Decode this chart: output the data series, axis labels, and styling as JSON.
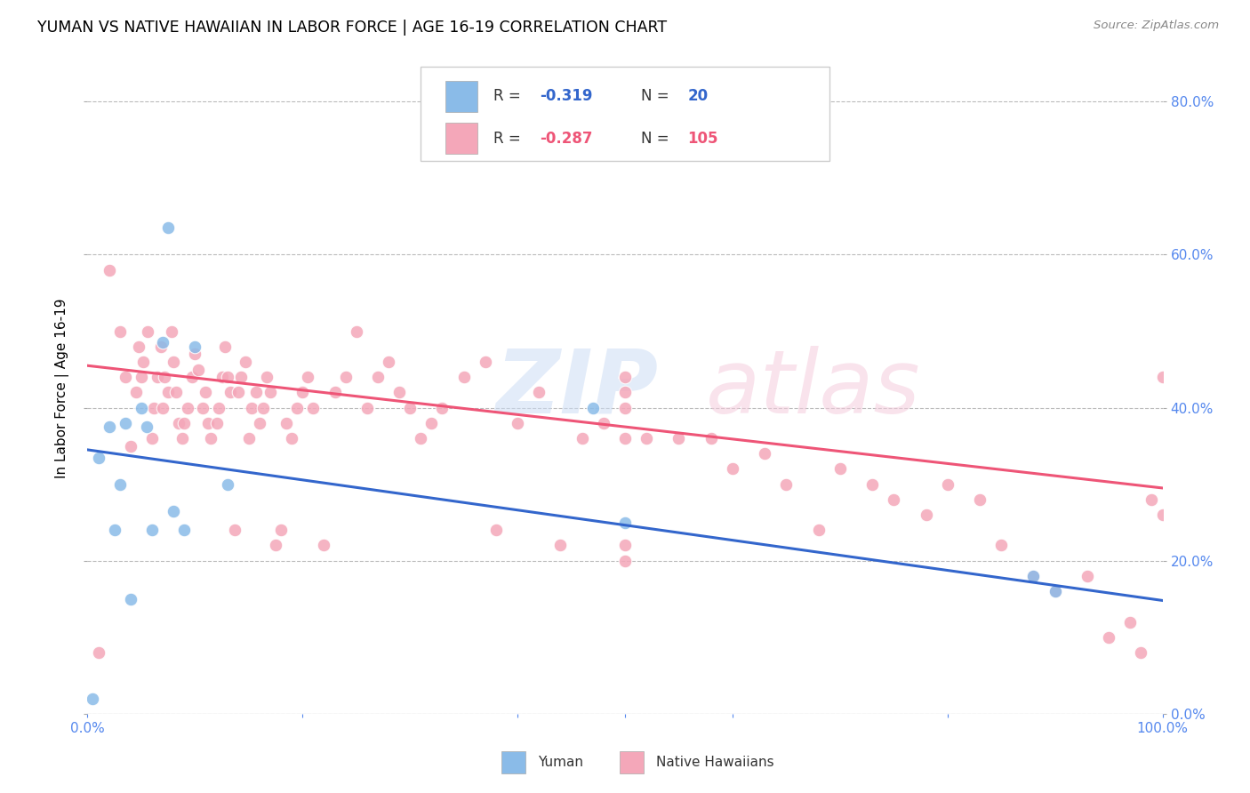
{
  "title": "YUMAN VS NATIVE HAWAIIAN IN LABOR FORCE | AGE 16-19 CORRELATION CHART",
  "source_text": "Source: ZipAtlas.com",
  "ylabel": "In Labor Force | Age 16-19",
  "xmin": 0.0,
  "xmax": 1.0,
  "ymin": 0.0,
  "ymax": 0.85,
  "yticks": [
    0.0,
    0.2,
    0.4,
    0.6,
    0.8
  ],
  "yticklabels_right": [
    "0.0%",
    "20.0%",
    "40.0%",
    "60.0%",
    "80.0%"
  ],
  "xtick_left_label": "0.0%",
  "xtick_right_label": "100.0%",
  "legend_r_blue": "-0.319",
  "legend_n_blue": "20",
  "legend_r_pink": "-0.287",
  "legend_n_pink": "105",
  "blue_color": "#8ABBE8",
  "pink_color": "#F4A7B9",
  "line_blue_color": "#3366CC",
  "line_pink_color": "#EE5577",
  "background_color": "#FFFFFF",
  "grid_color": "#BBBBBB",
  "tick_color": "#5588EE",
  "blue_trendline_y_start": 0.345,
  "blue_trendline_y_end": 0.148,
  "pink_trendline_y_start": 0.455,
  "pink_trendline_y_end": 0.295,
  "yuman_x": [
    0.005,
    0.01,
    0.02,
    0.025,
    0.03,
    0.035,
    0.04,
    0.05,
    0.055,
    0.06,
    0.07,
    0.075,
    0.08,
    0.09,
    0.1,
    0.13,
    0.47,
    0.5,
    0.88,
    0.9
  ],
  "yuman_y": [
    0.02,
    0.335,
    0.375,
    0.24,
    0.3,
    0.38,
    0.15,
    0.4,
    0.375,
    0.24,
    0.485,
    0.635,
    0.265,
    0.24,
    0.48,
    0.3,
    0.4,
    0.25,
    0.18,
    0.16
  ],
  "native_x": [
    0.01,
    0.02,
    0.03,
    0.035,
    0.04,
    0.045,
    0.048,
    0.05,
    0.052,
    0.056,
    0.06,
    0.062,
    0.065,
    0.068,
    0.07,
    0.072,
    0.075,
    0.078,
    0.08,
    0.082,
    0.085,
    0.088,
    0.09,
    0.093,
    0.097,
    0.1,
    0.103,
    0.107,
    0.11,
    0.112,
    0.115,
    0.12,
    0.122,
    0.125,
    0.128,
    0.13,
    0.133,
    0.137,
    0.14,
    0.143,
    0.147,
    0.15,
    0.153,
    0.157,
    0.16,
    0.163,
    0.167,
    0.17,
    0.175,
    0.18,
    0.185,
    0.19,
    0.195,
    0.2,
    0.205,
    0.21,
    0.22,
    0.23,
    0.24,
    0.25,
    0.26,
    0.27,
    0.28,
    0.29,
    0.3,
    0.31,
    0.32,
    0.33,
    0.35,
    0.37,
    0.38,
    0.4,
    0.42,
    0.44,
    0.46,
    0.48,
    0.5,
    0.52,
    0.55,
    0.58,
    0.6,
    0.63,
    0.65,
    0.68,
    0.7,
    0.73,
    0.75,
    0.78,
    0.8,
    0.83,
    0.85,
    0.88,
    0.9,
    0.93,
    0.95,
    0.97,
    0.98,
    0.99,
    1.0,
    1.0,
    0.5,
    0.5,
    0.5,
    0.5,
    0.5
  ],
  "native_y": [
    0.08,
    0.58,
    0.5,
    0.44,
    0.35,
    0.42,
    0.48,
    0.44,
    0.46,
    0.5,
    0.36,
    0.4,
    0.44,
    0.48,
    0.4,
    0.44,
    0.42,
    0.5,
    0.46,
    0.42,
    0.38,
    0.36,
    0.38,
    0.4,
    0.44,
    0.47,
    0.45,
    0.4,
    0.42,
    0.38,
    0.36,
    0.38,
    0.4,
    0.44,
    0.48,
    0.44,
    0.42,
    0.24,
    0.42,
    0.44,
    0.46,
    0.36,
    0.4,
    0.42,
    0.38,
    0.4,
    0.44,
    0.42,
    0.22,
    0.24,
    0.38,
    0.36,
    0.4,
    0.42,
    0.44,
    0.4,
    0.22,
    0.42,
    0.44,
    0.5,
    0.4,
    0.44,
    0.46,
    0.42,
    0.4,
    0.36,
    0.38,
    0.4,
    0.44,
    0.46,
    0.24,
    0.38,
    0.42,
    0.22,
    0.36,
    0.38,
    0.44,
    0.36,
    0.36,
    0.36,
    0.32,
    0.34,
    0.3,
    0.24,
    0.32,
    0.3,
    0.28,
    0.26,
    0.3,
    0.28,
    0.22,
    0.18,
    0.16,
    0.18,
    0.1,
    0.12,
    0.08,
    0.28,
    0.26,
    0.44,
    0.22,
    0.4,
    0.42,
    0.36,
    0.2
  ]
}
